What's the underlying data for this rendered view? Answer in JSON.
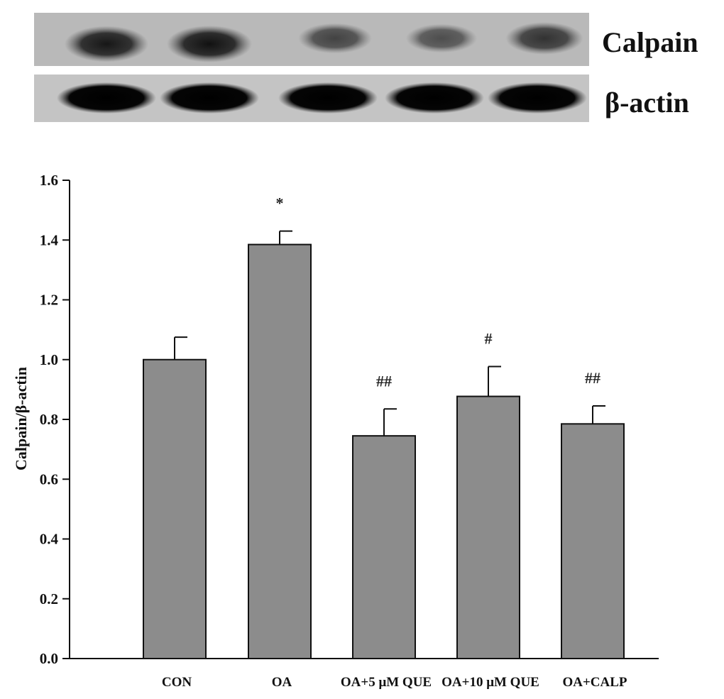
{
  "blot": {
    "lanes": 5,
    "rows": [
      {
        "label": "Calpain",
        "intensities": [
          0.95,
          1.0,
          0.55,
          0.45,
          0.7
        ],
        "gradient_id": "bandCalpain"
      },
      {
        "label": "β-actin",
        "intensities": [
          1.0,
          1.0,
          1.0,
          1.0,
          1.0
        ],
        "gradient_id": "bandActin"
      }
    ]
  },
  "chart_data": {
    "type": "bar",
    "categories": [
      "CON",
      "OA",
      "OA+5 μM QUE",
      "OA+10 μM QUE",
      "OA+CALP"
    ],
    "values": [
      1.0,
      1.385,
      0.745,
      0.877,
      0.785
    ],
    "errors": [
      0.075,
      0.045,
      0.09,
      0.1,
      0.06
    ],
    "annotations": [
      "",
      "*",
      "##",
      "#",
      "##"
    ],
    "ylabel": "Calpain/β-actin",
    "xlabel": "",
    "title": "",
    "ylim": [
      0,
      1.6
    ],
    "yticks": [
      "0.0",
      "0.2",
      "0.4",
      "0.6",
      "0.8",
      "1.0",
      "1.2",
      "1.4",
      "1.6"
    ],
    "bar_color": "#8c8c8c",
    "grid": false
  }
}
